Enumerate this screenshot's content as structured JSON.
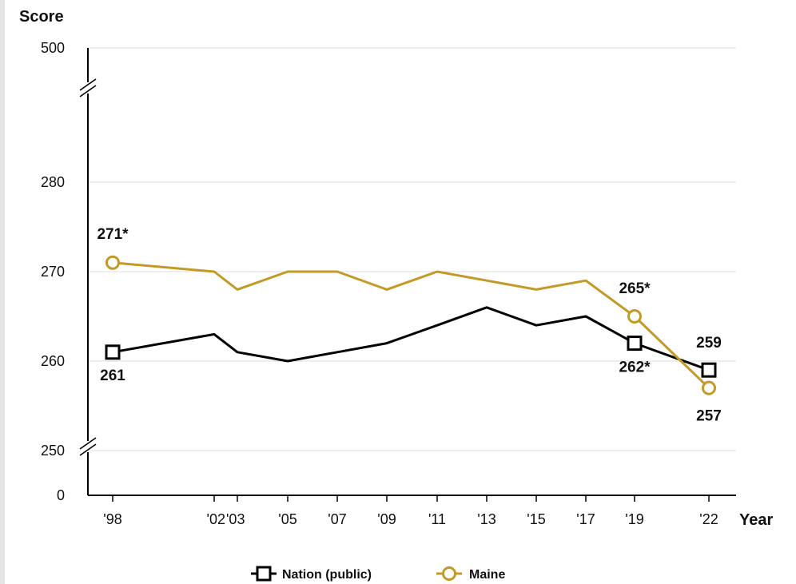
{
  "chart_data": {
    "type": "line",
    "ylabel": "Score",
    "xlabel": "Year",
    "x": [
      "'98",
      "'02",
      "'03",
      "'05",
      "'07",
      "'09",
      "'11",
      "'13",
      "'15",
      "'17",
      "'19",
      "'22"
    ],
    "y_ticks": [
      0,
      250,
      260,
      270,
      280,
      500
    ],
    "y_axis_breaks": [
      "0-250",
      "280-500"
    ],
    "ylim": [
      250,
      280
    ],
    "grid": true,
    "legend_position": "bottom",
    "series": [
      {
        "name": "Nation (public)",
        "color": "#000000",
        "marker": "square",
        "values": [
          261,
          263,
          261,
          260,
          261,
          262,
          264,
          266,
          264,
          265,
          262,
          259
        ],
        "labels": [
          {
            "x": "'98",
            "text": "261"
          },
          {
            "x": "'19",
            "text": "262*"
          },
          {
            "x": "'22",
            "text": "259"
          }
        ]
      },
      {
        "name": "Maine",
        "color": "#c49a26",
        "marker": "circle",
        "values": [
          271,
          270,
          268,
          270,
          270,
          268,
          270,
          269,
          268,
          269,
          265,
          257
        ],
        "labels": [
          {
            "x": "'98",
            "text": "271*"
          },
          {
            "x": "'19",
            "text": "265*"
          },
          {
            "x": "'22",
            "text": "257"
          }
        ]
      }
    ]
  }
}
